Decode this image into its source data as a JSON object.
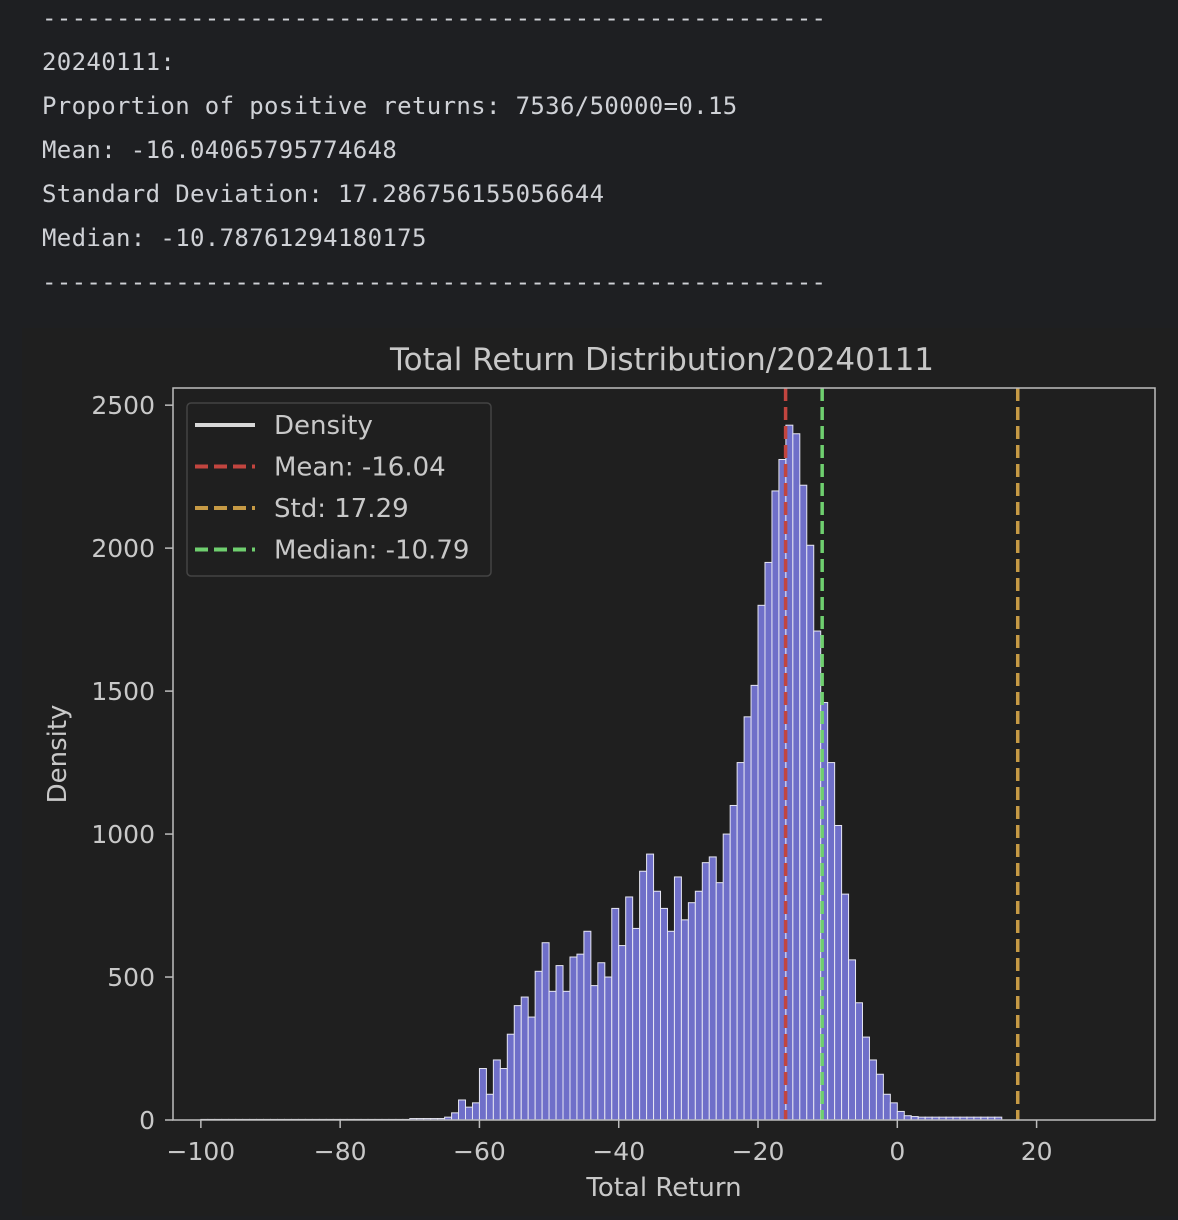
{
  "console": {
    "lines": [
      "-----------------------------------------------------",
      "20240111:",
      "Proportion of positive returns: 7536/50000=0.15",
      "Mean: -16.04065795774648",
      "Standard Deviation: 17.286756155056644",
      "Median: -10.78761294180175",
      "-----------------------------------------------------"
    ]
  },
  "chart_data": {
    "type": "bar",
    "title": "Total Return Distribution/20240111",
    "xlabel": "Total Return",
    "ylabel": "Density",
    "xlim": [
      -104,
      37
    ],
    "ylim": [
      0,
      2560
    ],
    "xticks": [
      -100,
      -80,
      -60,
      -40,
      -20,
      0,
      20
    ],
    "xtick_labels": [
      "−100",
      "−80",
      "−60",
      "−40",
      "−20",
      "0",
      "20"
    ],
    "yticks": [
      0,
      500,
      1000,
      1500,
      2000,
      2500
    ],
    "ytick_labels": [
      "0",
      "500",
      "1000",
      "1500",
      "2000",
      "2500"
    ],
    "grid": false,
    "legend_placement": "upper-left",
    "histogram": {
      "bin_start": -100,
      "bin_width": 1.0,
      "counts": [
        2,
        2,
        2,
        2,
        2,
        2,
        2,
        2,
        2,
        2,
        2,
        2,
        2,
        2,
        2,
        2,
        2,
        2,
        2,
        2,
        2,
        2,
        2,
        2,
        2,
        2,
        2,
        2,
        2,
        2,
        5,
        5,
        5,
        5,
        5,
        10,
        25,
        70,
        45,
        60,
        180,
        90,
        210,
        180,
        300,
        400,
        430,
        360,
        520,
        620,
        450,
        540,
        450,
        570,
        580,
        660,
        470,
        550,
        500,
        740,
        610,
        780,
        670,
        870,
        930,
        800,
        740,
        660,
        850,
        700,
        760,
        800,
        900,
        920,
        830,
        1000,
        1100,
        1250,
        1410,
        1520,
        1800,
        1950,
        2200,
        2310,
        2430,
        2400,
        2220,
        2010,
        1710,
        1460,
        1250,
        1030,
        790,
        560,
        410,
        290,
        210,
        160,
        90,
        60,
        30,
        15,
        12,
        10,
        10,
        10,
        10,
        10,
        10,
        10,
        10,
        10,
        10,
        10,
        10
      ],
      "fill_color": "#6f6fc9",
      "edge_color": "#e6e6f2"
    },
    "vlines": [
      {
        "name": "Mean: -16.04",
        "x": -16.04,
        "color": "#c2453f"
      },
      {
        "name": "Std: 17.29",
        "x": 17.29,
        "color": "#c69a45"
      },
      {
        "name": "Median: -10.79",
        "x": -10.79,
        "color": "#6fcf6f"
      }
    ],
    "legend": [
      {
        "label": "Density",
        "style": "solid",
        "color": "#d8d8d8"
      },
      {
        "label": "Mean: -16.04",
        "style": "dashed",
        "color": "#c2453f"
      },
      {
        "label": "Std: 17.29",
        "style": "dashed",
        "color": "#c69a45"
      },
      {
        "label": "Median: -10.79",
        "style": "dashed",
        "color": "#6fcf6f"
      }
    ],
    "colors": {
      "axes_background": "#1f1f1f",
      "frame": "#bdbdbd",
      "text": "#c8c8c8"
    }
  }
}
